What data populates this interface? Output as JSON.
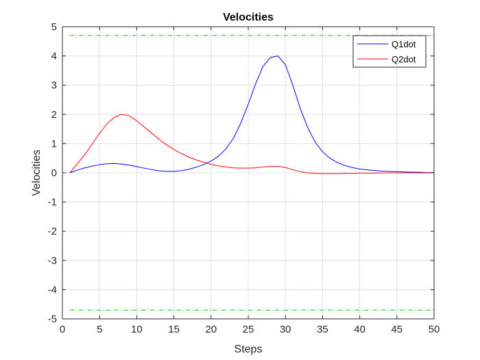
{
  "chart_data": {
    "type": "line",
    "title": "Velocities",
    "xlabel": "Steps",
    "ylabel": "Velocities",
    "xlim": [
      0,
      50
    ],
    "ylim": [
      -5,
      5
    ],
    "xticks": [
      "0",
      "5",
      "10",
      "15",
      "20",
      "25",
      "30",
      "35",
      "40",
      "45",
      "50"
    ],
    "yticks": [
      "-5",
      "-4",
      "-3",
      "-2",
      "-1",
      "0",
      "1",
      "2",
      "3",
      "4",
      "5"
    ],
    "grid": true,
    "legend_position": "top-right",
    "series": [
      {
        "name": "Q1dot",
        "color": "#0000ff",
        "x": [
          1,
          2,
          3,
          4,
          5,
          6,
          7,
          8,
          9,
          10,
          11,
          12,
          13,
          14,
          15,
          16,
          17,
          18,
          19,
          20,
          21,
          22,
          23,
          24,
          25,
          26,
          27,
          28,
          29,
          30,
          31,
          32,
          33,
          34,
          35,
          36,
          37,
          38,
          39,
          40,
          41,
          42,
          43,
          44,
          45,
          46,
          47,
          48,
          49,
          50
        ],
        "values": [
          0.0,
          0.09,
          0.17,
          0.23,
          0.28,
          0.31,
          0.32,
          0.3,
          0.26,
          0.21,
          0.16,
          0.11,
          0.07,
          0.05,
          0.05,
          0.07,
          0.12,
          0.19,
          0.28,
          0.4,
          0.57,
          0.82,
          1.18,
          1.7,
          2.35,
          3.05,
          3.65,
          3.95,
          4.0,
          3.7,
          3.0,
          2.2,
          1.55,
          1.05,
          0.72,
          0.5,
          0.35,
          0.25,
          0.18,
          0.13,
          0.1,
          0.08,
          0.06,
          0.05,
          0.04,
          0.03,
          0.02,
          0.02,
          0.01,
          0.01
        ]
      },
      {
        "name": "Q2dot",
        "color": "#ff0000",
        "x": [
          1,
          2,
          3,
          4,
          5,
          6,
          7,
          8,
          9,
          10,
          11,
          12,
          13,
          14,
          15,
          16,
          17,
          18,
          19,
          20,
          21,
          22,
          23,
          24,
          25,
          26,
          27,
          28,
          29,
          30,
          31,
          32,
          33,
          34,
          35,
          36,
          37,
          38,
          39,
          40,
          41,
          42,
          43,
          44,
          45,
          46,
          47,
          48,
          49,
          50
        ],
        "values": [
          0.0,
          0.3,
          0.62,
          0.98,
          1.35,
          1.68,
          1.9,
          2.0,
          1.95,
          1.78,
          1.57,
          1.36,
          1.15,
          0.96,
          0.8,
          0.66,
          0.54,
          0.44,
          0.36,
          0.29,
          0.24,
          0.2,
          0.17,
          0.16,
          0.16,
          0.17,
          0.2,
          0.22,
          0.22,
          0.18,
          0.11,
          0.04,
          0.0,
          -0.02,
          -0.03,
          -0.03,
          -0.03,
          -0.02,
          -0.02,
          -0.01,
          -0.01,
          -0.01,
          0.0,
          0.0,
          0.0,
          0.0,
          0.0,
          0.0,
          0.0,
          0.0
        ]
      },
      {
        "name": "",
        "color": "#00cc00",
        "style": "dash-dot",
        "x": [
          1,
          50
        ],
        "values": [
          4.7,
          4.7
        ]
      },
      {
        "name": "",
        "color": "#00cc00",
        "style": "dash-dot",
        "x": [
          1,
          50
        ],
        "values": [
          -4.7,
          -4.7
        ]
      }
    ]
  }
}
